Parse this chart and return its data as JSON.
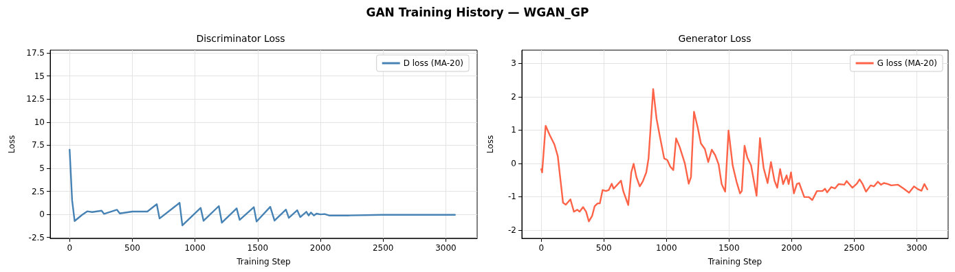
{
  "chart_data": [
    {
      "type": "line",
      "title": "Discriminator Loss",
      "xlabel": "Training Step",
      "ylabel": "Loss",
      "annotations": [
        "GAN Training History — WGAN_GP"
      ],
      "xlim": [
        -155,
        3250
      ],
      "ylim": [
        -2.6,
        17.8
      ],
      "xticks": [
        0,
        500,
        1000,
        1500,
        2000,
        2500,
        3000
      ],
      "yticks": [
        -2.5,
        0.0,
        2.5,
        5.0,
        7.5,
        10.0,
        12.5,
        15.0,
        17.5
      ],
      "grid": true,
      "legend": "top right",
      "marker": "none",
      "line_style": "solid",
      "series": [
        {
          "name": "D loss (MA-20)",
          "color": "#4682b4",
          "x": [
            0,
            20,
            40,
            100,
            140,
            180,
            255,
            275,
            330,
            377,
            400,
            500,
            620,
            695,
            717,
            877,
            899,
            1045,
            1068,
            1190,
            1214,
            1332,
            1356,
            1469,
            1491,
            1600,
            1634,
            1725,
            1748,
            1815,
            1839,
            1888,
            1906,
            1924,
            1948,
            1969,
            2000,
            2033,
            2069,
            2223,
            2494,
            3073
          ],
          "values": [
            7.0,
            1.5,
            -0.72,
            -0.05,
            0.33,
            0.25,
            0.4,
            0.05,
            0.3,
            0.5,
            0.1,
            0.3,
            0.3,
            1.1,
            -0.45,
            1.25,
            -1.2,
            0.7,
            -0.7,
            0.9,
            -0.9,
            0.65,
            -0.6,
            0.78,
            -0.78,
            0.82,
            -0.68,
            0.52,
            -0.38,
            0.45,
            -0.3,
            0.28,
            -0.12,
            0.2,
            -0.12,
            0.08,
            0.0,
            0.03,
            -0.12,
            -0.12,
            -0.05,
            -0.05
          ]
        }
      ]
    },
    {
      "type": "line",
      "title": "Generator Loss",
      "xlabel": "Training Step",
      "ylabel": "Loss",
      "xlim": [
        -155,
        3250
      ],
      "ylim": [
        -2.25,
        3.4
      ],
      "xticks": [
        0,
        500,
        1000,
        1500,
        2000,
        2500,
        3000
      ],
      "yticks": [
        -2,
        -1,
        0,
        1,
        2,
        3
      ],
      "grid": true,
      "legend": "top right",
      "marker": "none",
      "line_style": "solid",
      "series": [
        {
          "name": "G loss (MA-20)",
          "color": "#ff6347",
          "x": [
            0,
            7,
            35,
            68,
            105,
            132,
            174,
            196,
            233,
            261,
            288,
            306,
            334,
            358,
            380,
            407,
            426,
            450,
            468,
            490,
            517,
            539,
            563,
            578,
            637,
            655,
            695,
            719,
            738,
            760,
            787,
            811,
            839,
            857,
            894,
            921,
            949,
            982,
            1007,
            1031,
            1055,
            1077,
            1105,
            1147,
            1178,
            1196,
            1220,
            1251,
            1275,
            1307,
            1334,
            1362,
            1389,
            1417,
            1441,
            1469,
            1496,
            1529,
            1560,
            1588,
            1602,
            1624,
            1646,
            1676,
            1720,
            1747,
            1776,
            1808,
            1835,
            1863,
            1885,
            1908,
            1932,
            1960,
            1976,
            1995,
            2018,
            2042,
            2060,
            2101,
            2137,
            2165,
            2202,
            2247,
            2266,
            2284,
            2317,
            2347,
            2375,
            2421,
            2439,
            2485,
            2521,
            2543,
            2567,
            2594,
            2631,
            2658,
            2689,
            2713,
            2737,
            2768,
            2795,
            2850,
            2896,
            2938,
            2978,
            3011,
            3037,
            3060,
            3084
          ],
          "values": [
            -0.17,
            -0.27,
            1.13,
            0.85,
            0.57,
            0.22,
            -1.18,
            -1.24,
            -1.08,
            -1.45,
            -1.39,
            -1.45,
            -1.31,
            -1.45,
            -1.74,
            -1.57,
            -1.29,
            -1.2,
            -1.2,
            -0.8,
            -0.83,
            -0.8,
            -0.61,
            -0.76,
            -0.52,
            -0.83,
            -1.25,
            -0.27,
            -0.01,
            -0.41,
            -0.69,
            -0.54,
            -0.27,
            0.15,
            2.23,
            1.34,
            0.78,
            0.15,
            0.1,
            -0.1,
            -0.2,
            0.75,
            0.5,
            0.0,
            -0.61,
            -0.41,
            1.55,
            1.06,
            0.6,
            0.43,
            0.04,
            0.41,
            0.25,
            -0.03,
            -0.62,
            -0.85,
            0.99,
            -0.06,
            -0.55,
            -0.9,
            -0.83,
            0.53,
            0.18,
            -0.06,
            -0.97,
            0.76,
            -0.13,
            -0.59,
            0.04,
            -0.52,
            -0.73,
            -0.17,
            -0.62,
            -0.36,
            -0.62,
            -0.27,
            -0.9,
            -0.62,
            -0.59,
            -1.01,
            -1.01,
            -1.1,
            -0.83,
            -0.83,
            -0.76,
            -0.87,
            -0.71,
            -0.75,
            -0.62,
            -0.64,
            -0.53,
            -0.73,
            -0.61,
            -0.48,
            -0.62,
            -0.85,
            -0.66,
            -0.69,
            -0.55,
            -0.64,
            -0.59,
            -0.62,
            -0.66,
            -0.64,
            -0.76,
            -0.88,
            -0.69,
            -0.78,
            -0.82,
            -0.62,
            -0.78
          ]
        }
      ]
    }
  ]
}
